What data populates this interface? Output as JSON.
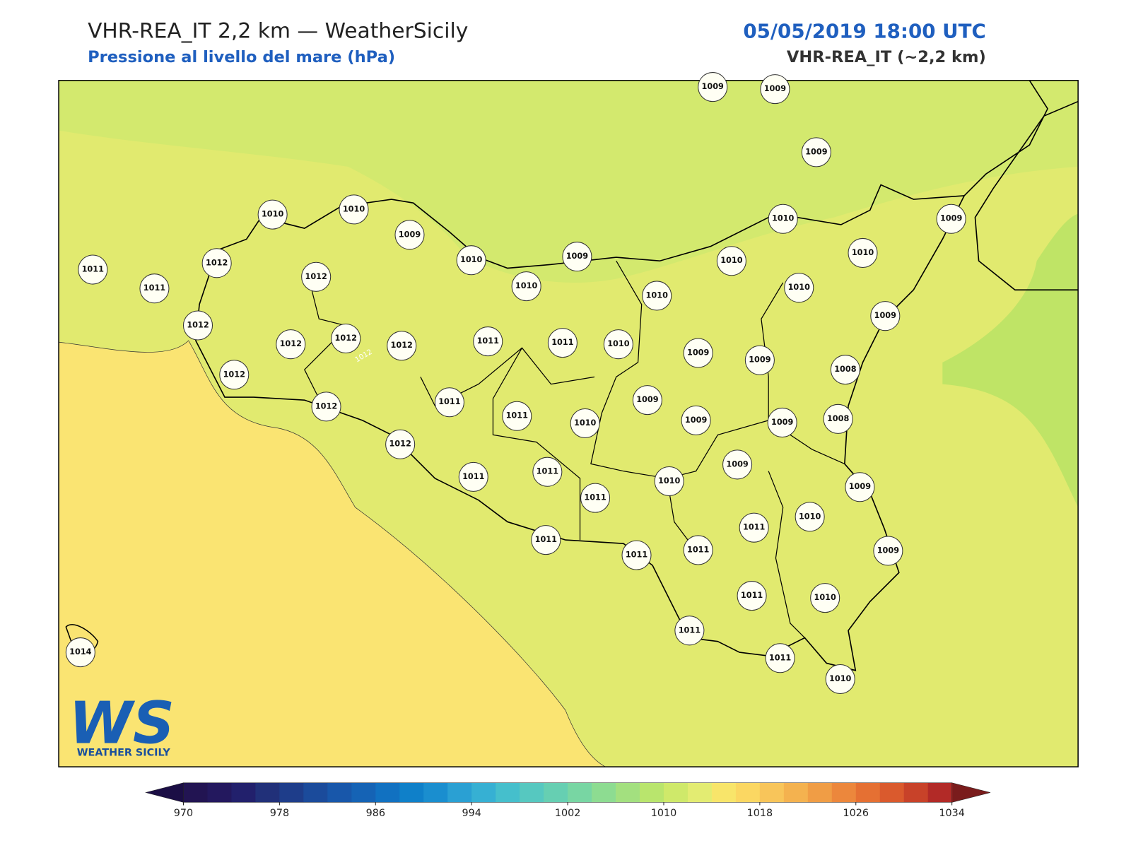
{
  "header": {
    "title": "VHR-REA_IT 2,2 km — WeatherSicily",
    "subtitle": "Pressione al livello del mare (hPa)",
    "datetime": "05/05/2019 18:00 UTC",
    "model": "VHR-REA_IT (~2,2 km)"
  },
  "map": {
    "contour_label": "1012",
    "stations": [
      1009,
      1009,
      1009,
      1010,
      1010,
      1009,
      1010,
      1009,
      1010,
      1009,
      1011,
      1011,
      1012,
      1012,
      1010,
      1010,
      1010,
      1010,
      1010,
      1009,
      1012,
      1012,
      1012,
      1012,
      1011,
      1011,
      1010,
      1009,
      1009,
      1008,
      1012,
      1012,
      1011,
      1011,
      1010,
      1009,
      1009,
      1009,
      1008,
      1012,
      1011,
      1011,
      1009,
      1010,
      1009,
      1011,
      1011,
      1010,
      1011,
      1011,
      1011,
      1009,
      1011,
      1010,
      1011,
      1011,
      1010,
      1014
    ]
  },
  "colorbar": {
    "ticks": [
      970,
      978,
      986,
      994,
      1002,
      1010,
      1018,
      1026,
      1034
    ],
    "under_color": "#1b0e45",
    "over_color": "#7a1c1c",
    "colors": [
      "#221452",
      "#23185e",
      "#22206c",
      "#213079",
      "#1e3d8a",
      "#1b4b9b",
      "#1857aa",
      "#1563b5",
      "#1171c1",
      "#0f80c9",
      "#1a8ecf",
      "#2aa0d3",
      "#36b0d3",
      "#45bfcc",
      "#56c8c0",
      "#66cfb2",
      "#78d6a3",
      "#8ddc91",
      "#a3e07f",
      "#b9e56d",
      "#cfe96a",
      "#e3ec72",
      "#f8e56a",
      "#fbd762",
      "#f8c55a",
      "#f4b24f",
      "#f09d45",
      "#ec873c",
      "#e57033",
      "#da5a2d",
      "#c84229",
      "#b22a27"
    ]
  },
  "logo": {
    "mark": "WS",
    "text": "WEATHER SICILY"
  }
}
